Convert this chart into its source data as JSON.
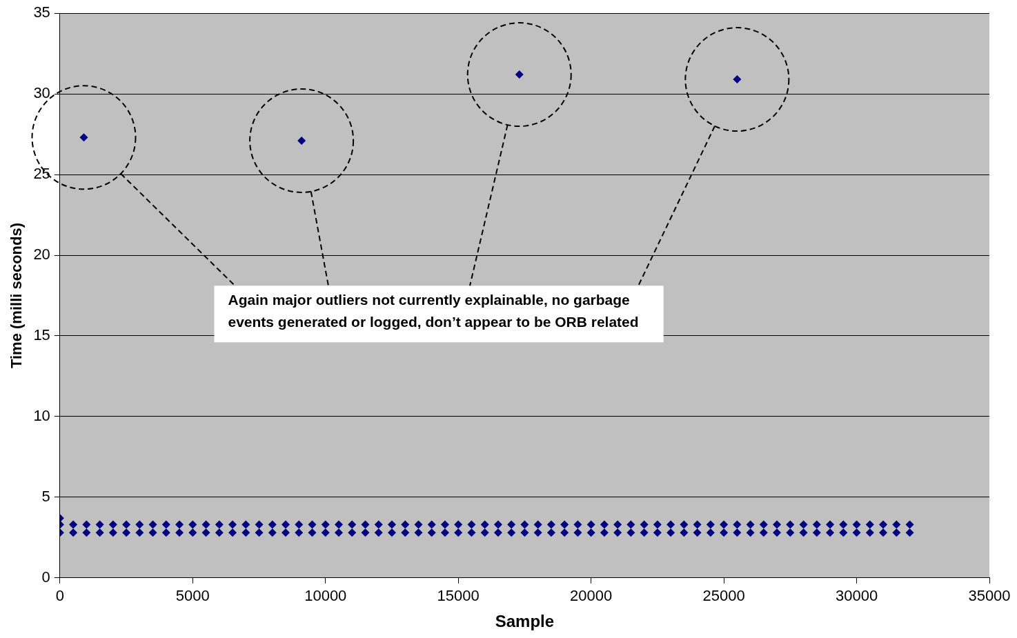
{
  "chart_data": {
    "type": "scatter",
    "xlabel": "Sample",
    "ylabel": "Time (milli seconds)",
    "annotations": [
      "Again major outliers not currently explainable, no garbage events generated or logged, don’t appear to be ORB related"
    ],
    "xlim": [
      0,
      35000
    ],
    "xticks": [
      0,
      5000,
      10000,
      15000,
      20000,
      25000,
      30000,
      35000
    ],
    "ylim": [
      0,
      35
    ],
    "yticks": [
      0,
      5,
      10,
      15,
      20,
      25,
      30,
      35
    ],
    "grid": "y",
    "marker": "diamond",
    "series": [
      {
        "color": "#000080",
        "x": [
          0,
          500,
          1000,
          1500,
          2000,
          2500,
          3000,
          3500,
          4000,
          4500,
          5000,
          5500,
          6000,
          6500,
          7000,
          7500,
          8000,
          8500,
          9000,
          9500,
          10000,
          10500,
          11000,
          11500,
          12000,
          12500,
          13000,
          13500,
          14000,
          14500,
          15000,
          15500,
          16000,
          16500,
          17000,
          17500,
          18000,
          18500,
          19000,
          19500,
          20000,
          20500,
          21000,
          21500,
          22000,
          22500,
          23000,
          23500,
          24000,
          24500,
          25000,
          25500,
          26000,
          26500,
          27000,
          27500,
          28000,
          28500,
          29000,
          29500,
          30000,
          30500,
          31000,
          31500,
          32000,
          0,
          500,
          1000,
          1500,
          2000,
          2500,
          3000,
          3500,
          4000,
          4500,
          5000,
          5500,
          6000,
          6500,
          7000,
          7500,
          8000,
          8500,
          9000,
          9500,
          10000,
          10500,
          11000,
          11500,
          12000,
          12500,
          13000,
          13500,
          14000,
          14500,
          15000,
          15500,
          16000,
          16500,
          17000,
          17500,
          18000,
          18500,
          19000,
          19500,
          20000,
          20500,
          21000,
          21500,
          22000,
          22500,
          23000,
          23500,
          24000,
          24500,
          25000,
          25500,
          26000,
          26500,
          27000,
          27500,
          28000,
          28500,
          29000,
          29500,
          30000,
          30500,
          31000,
          31500,
          32000,
          0
        ],
        "values": [
          2.8,
          2.8,
          2.8,
          2.8,
          2.8,
          2.8,
          2.8,
          2.8,
          2.8,
          2.8,
          2.8,
          2.8,
          2.8,
          2.8,
          2.8,
          2.8,
          2.8,
          2.8,
          2.8,
          2.8,
          2.8,
          2.8,
          2.8,
          2.8,
          2.8,
          2.8,
          2.8,
          2.8,
          2.8,
          2.8,
          2.8,
          2.8,
          2.8,
          2.8,
          2.8,
          2.8,
          2.8,
          2.8,
          2.8,
          2.8,
          2.8,
          2.8,
          2.8,
          2.8,
          2.8,
          2.8,
          2.8,
          2.8,
          2.8,
          2.8,
          2.8,
          2.8,
          2.8,
          2.8,
          2.8,
          2.8,
          2.8,
          2.8,
          2.8,
          2.8,
          2.8,
          2.8,
          2.8,
          2.8,
          2.8,
          3.3,
          3.3,
          3.3,
          3.3,
          3.3,
          3.3,
          3.3,
          3.3,
          3.3,
          3.3,
          3.3,
          3.3,
          3.3,
          3.3,
          3.3,
          3.3,
          3.3,
          3.3,
          3.3,
          3.3,
          3.3,
          3.3,
          3.3,
          3.3,
          3.3,
          3.3,
          3.3,
          3.3,
          3.3,
          3.3,
          3.3,
          3.3,
          3.3,
          3.3,
          3.3,
          3.3,
          3.3,
          3.3,
          3.3,
          3.3,
          3.3,
          3.3,
          3.3,
          3.3,
          3.3,
          3.3,
          3.3,
          3.3,
          3.3,
          3.3,
          3.3,
          3.3,
          3.3,
          3.3,
          3.3,
          3.3,
          3.3,
          3.3,
          3.3,
          3.3,
          3.3,
          3.3,
          3.3,
          3.3,
          3.3,
          3.7
        ]
      },
      {
        "color": "#000080",
        "x": [
          900,
          9100,
          17300,
          25500
        ],
        "values": [
          27.3,
          27.1,
          31.2,
          30.9
        ]
      }
    ]
  }
}
